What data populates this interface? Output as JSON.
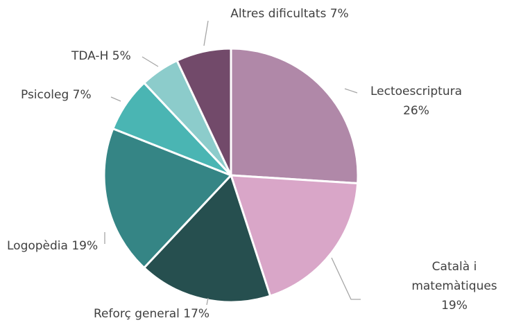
{
  "chart_data": {
    "type": "pie",
    "categories": [
      "Lectoescriptura",
      "Català i matemàtiques",
      "Reforç general",
      "Logopèdia",
      "Psicoleg",
      "TDA-H",
      "Altres dificultats"
    ],
    "values": [
      26,
      19,
      17,
      19,
      7,
      5,
      7
    ],
    "value_labels": [
      "26%",
      "19%",
      "17%",
      "19%",
      "7%",
      "5%",
      "7%"
    ],
    "colors": [
      "#b088a8",
      "#d9a6c8",
      "#264f4f",
      "#358585",
      "#4ab5b3",
      "#8ccccb",
      "#724a6a"
    ]
  }
}
